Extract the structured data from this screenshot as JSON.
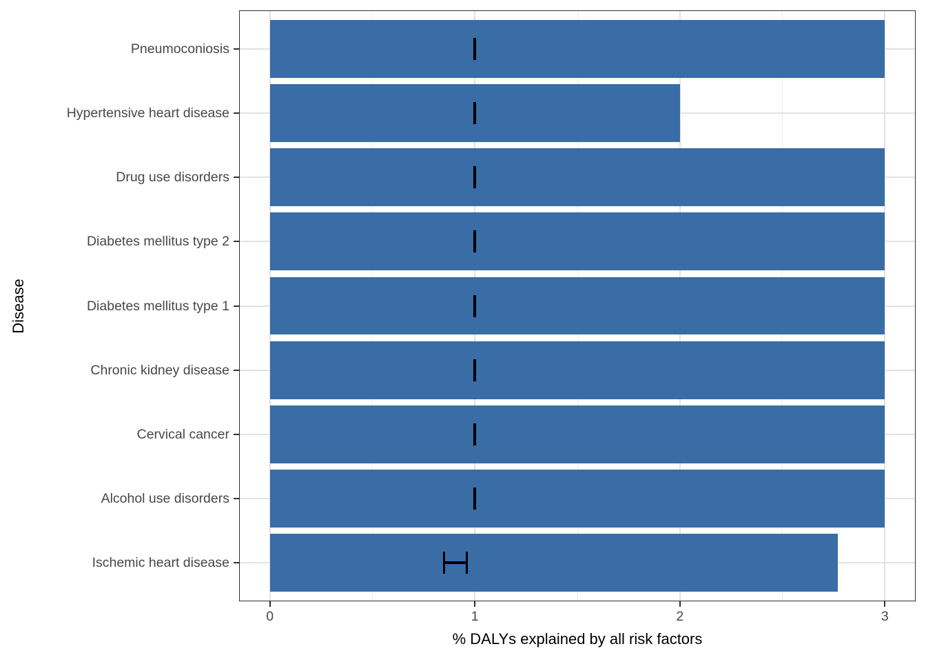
{
  "chart_data": {
    "type": "bar",
    "orientation": "horizontal",
    "title": "",
    "xlabel": "% DALYs explained by all risk factors",
    "ylabel": "Disease",
    "categories": [
      "Pneumoconiosis",
      "Hypertensive heart disease",
      "Drug use disorders",
      "Diabetes mellitus type 2",
      "Diabetes mellitus type 1",
      "Chronic kidney disease",
      "Cervical cancer",
      "Alcohol use disorders",
      "Ischemic heart disease"
    ],
    "values": [
      3.0,
      2.0,
      3.0,
      3.0,
      3.0,
      3.0,
      3.0,
      3.0,
      2.77
    ],
    "error_bars": [
      {
        "low": 1.0,
        "high": 1.0
      },
      {
        "low": 1.0,
        "high": 1.0
      },
      {
        "low": 1.0,
        "high": 1.0
      },
      {
        "low": 1.0,
        "high": 1.0
      },
      {
        "low": 1.0,
        "high": 1.0
      },
      {
        "low": 1.0,
        "high": 1.0
      },
      {
        "low": 1.0,
        "high": 1.0
      },
      {
        "low": 1.0,
        "high": 1.0
      },
      {
        "low": 0.85,
        "high": 0.96
      }
    ],
    "x_ticks": [
      0,
      1,
      2,
      3
    ],
    "x_tick_labels": [
      "0",
      "1",
      "2",
      "3"
    ],
    "x_minor_ticks": [
      0.5,
      1.5,
      2.5
    ],
    "xlim": [
      0,
      3
    ],
    "x_expansion": 0.15,
    "bar_width_fraction": 0.9,
    "grid": "on",
    "legend": "none",
    "colors": {
      "bar_fill": "#3A6CA6",
      "error_bar": "#000000",
      "grid_major": "#E2E2E2",
      "grid_minor": "#EBEBEB",
      "panel_border": "#2E2E2E",
      "tick_mark": "#333333",
      "tick_label": "#474747",
      "axis_title": "#000000",
      "background": "#FFFFFF"
    }
  }
}
